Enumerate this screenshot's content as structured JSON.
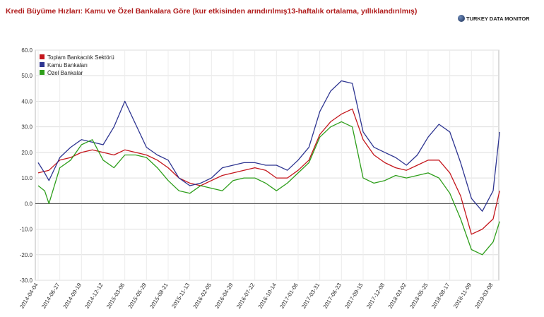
{
  "title": "Kredi Büyüme Hızları: Kamu ve Özel Bankalara Göre (kur etkisinden arındırılmış13-haftalık ortalama, yıllıklandırılmış)",
  "brand": "TURKEY DATA MONITOR",
  "chart_data": {
    "type": "line",
    "ylim": [
      -30,
      60
    ],
    "yticks": [
      "60.0",
      "50.0",
      "40.0",
      "30.0",
      "20.0",
      "10.0",
      "0.0",
      "-10.0",
      "-20.0",
      "-30.0"
    ],
    "x_labels": [
      "2014-04-04",
      "2014-06-27",
      "2014-09-19",
      "2014-12-12",
      "2015-03-06",
      "2015-05-29",
      "2015-08-21",
      "2015-11-13",
      "2016-02-05",
      "2016-04-29",
      "2016-07-22",
      "2016-10-14",
      "2017-01-06",
      "2017-03-31",
      "2017-06-23",
      "2017-09-15",
      "2017-12-08",
      "2018-03-02",
      "2018-05-25",
      "2018-08-17",
      "2018-11-09",
      "2019-03-08"
    ],
    "grid": true,
    "legend_position": "top-left",
    "series": [
      {
        "name": "Toplam Bankacılık Sektörü",
        "color": "#c4161c",
        "points": [
          [
            0,
            12
          ],
          [
            0.5,
            13
          ],
          [
            1,
            17
          ],
          [
            1.5,
            18
          ],
          [
            2,
            20
          ],
          [
            2.5,
            21
          ],
          [
            3,
            20
          ],
          [
            3.5,
            19
          ],
          [
            4,
            21
          ],
          [
            4.5,
            20
          ],
          [
            5,
            19
          ],
          [
            5.5,
            17
          ],
          [
            6,
            14
          ],
          [
            6.5,
            10
          ],
          [
            7,
            8
          ],
          [
            7.5,
            7
          ],
          [
            8,
            9
          ],
          [
            8.5,
            11
          ],
          [
            9,
            12
          ],
          [
            9.5,
            13
          ],
          [
            10,
            14
          ],
          [
            10.5,
            13
          ],
          [
            11,
            10
          ],
          [
            11.5,
            10
          ],
          [
            12,
            13
          ],
          [
            12.5,
            17
          ],
          [
            13,
            27
          ],
          [
            13.5,
            32
          ],
          [
            14,
            35
          ],
          [
            14.5,
            37
          ],
          [
            15,
            25
          ],
          [
            15.5,
            19
          ],
          [
            16,
            16
          ],
          [
            16.5,
            14
          ],
          [
            17,
            13
          ],
          [
            17.5,
            15
          ],
          [
            18,
            17
          ],
          [
            18.5,
            17
          ],
          [
            19,
            12
          ],
          [
            19.5,
            3
          ],
          [
            20,
            -12
          ],
          [
            20.5,
            -10
          ],
          [
            21,
            -6
          ],
          [
            21.3,
            5
          ]
        ]
      },
      {
        "name": "Kamu Bankaları",
        "color": "#2e3591",
        "points": [
          [
            0,
            16
          ],
          [
            0.3,
            12
          ],
          [
            0.5,
            9
          ],
          [
            1,
            18
          ],
          [
            1.5,
            22
          ],
          [
            2,
            25
          ],
          [
            2.5,
            24
          ],
          [
            3,
            23
          ],
          [
            3.5,
            30
          ],
          [
            4,
            40
          ],
          [
            4.5,
            31
          ],
          [
            5,
            22
          ],
          [
            5.5,
            19
          ],
          [
            6,
            17
          ],
          [
            6.5,
            10
          ],
          [
            7,
            7
          ],
          [
            7.5,
            8
          ],
          [
            8,
            10
          ],
          [
            8.5,
            14
          ],
          [
            9,
            15
          ],
          [
            9.5,
            16
          ],
          [
            10,
            16
          ],
          [
            10.5,
            15
          ],
          [
            11,
            15
          ],
          [
            11.5,
            13
          ],
          [
            12,
            17
          ],
          [
            12.5,
            22
          ],
          [
            13,
            36
          ],
          [
            13.5,
            44
          ],
          [
            14,
            48
          ],
          [
            14.5,
            47
          ],
          [
            15,
            28
          ],
          [
            15.5,
            22
          ],
          [
            16,
            20
          ],
          [
            16.5,
            18
          ],
          [
            17,
            15
          ],
          [
            17.5,
            19
          ],
          [
            18,
            26
          ],
          [
            18.5,
            31
          ],
          [
            19,
            28
          ],
          [
            19.5,
            16
          ],
          [
            20,
            2
          ],
          [
            20.5,
            -3
          ],
          [
            21,
            5
          ],
          [
            21.3,
            28
          ]
        ]
      },
      {
        "name": "Özel Bankalar",
        "color": "#2e9e1b",
        "points": [
          [
            0,
            7
          ],
          [
            0.3,
            5
          ],
          [
            0.5,
            0
          ],
          [
            1,
            14
          ],
          [
            1.5,
            17
          ],
          [
            2,
            23
          ],
          [
            2.5,
            25
          ],
          [
            3,
            17
          ],
          [
            3.5,
            14
          ],
          [
            4,
            19
          ],
          [
            4.5,
            19
          ],
          [
            5,
            18
          ],
          [
            5.5,
            14
          ],
          [
            6,
            9
          ],
          [
            6.5,
            5
          ],
          [
            7,
            4
          ],
          [
            7.5,
            7
          ],
          [
            8,
            6
          ],
          [
            8.5,
            5
          ],
          [
            9,
            9
          ],
          [
            9.5,
            10
          ],
          [
            10,
            10
          ],
          [
            10.5,
            8
          ],
          [
            11,
            5
          ],
          [
            11.5,
            8
          ],
          [
            12,
            12
          ],
          [
            12.5,
            16
          ],
          [
            13,
            26
          ],
          [
            13.5,
            30
          ],
          [
            14,
            32
          ],
          [
            14.5,
            30
          ],
          [
            15,
            10
          ],
          [
            15.5,
            8
          ],
          [
            16,
            9
          ],
          [
            16.5,
            11
          ],
          [
            17,
            10
          ],
          [
            17.5,
            11
          ],
          [
            18,
            12
          ],
          [
            18.5,
            10
          ],
          [
            19,
            4
          ],
          [
            19.5,
            -6
          ],
          [
            20,
            -18
          ],
          [
            20.5,
            -20
          ],
          [
            21,
            -15
          ],
          [
            21.3,
            -7
          ]
        ]
      }
    ]
  }
}
